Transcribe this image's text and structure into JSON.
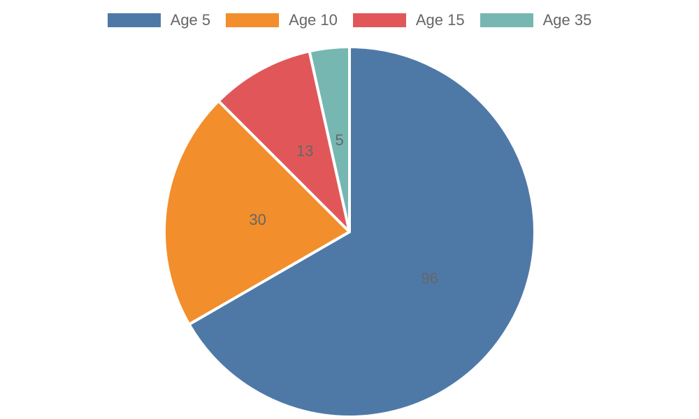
{
  "chart_data": {
    "type": "pie",
    "categories": [
      "Age 5",
      "Age 10",
      "Age 15",
      "Age 35"
    ],
    "values": [
      96,
      30,
      13,
      5
    ],
    "colors": [
      "#4e79a7",
      "#f28e2b",
      "#e15759",
      "#76b7b2"
    ],
    "legend_placement": "top-center",
    "data_labels": [
      "96",
      "30",
      "13",
      "5"
    ]
  }
}
